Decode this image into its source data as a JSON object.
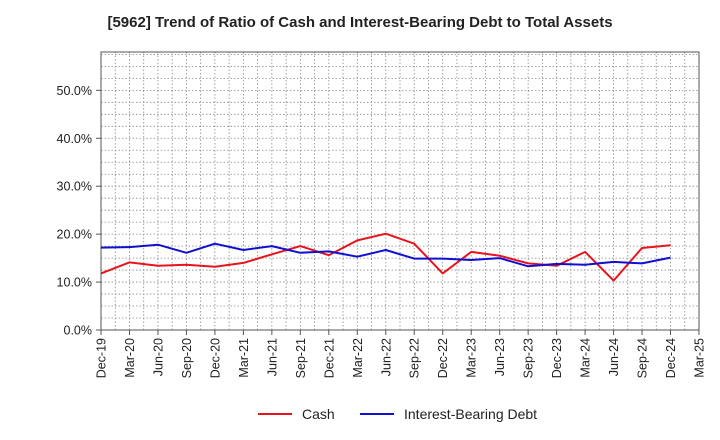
{
  "chart_data": {
    "type": "line",
    "title": "[5962]  Trend of Ratio of Cash and Interest-Bearing Debt to Total Assets",
    "xlabel": "",
    "ylabel": "",
    "x": [
      "Dec-19",
      "Mar-20",
      "Jun-20",
      "Sep-20",
      "Dec-20",
      "Mar-21",
      "Jun-21",
      "Sep-21",
      "Dec-21",
      "Mar-22",
      "Jun-22",
      "Sep-22",
      "Dec-22",
      "Mar-23",
      "Jun-23",
      "Sep-23",
      "Dec-23",
      "Mar-24",
      "Jun-24",
      "Sep-24",
      "Dec-24",
      "Mar-25"
    ],
    "ylim": [
      0,
      58
    ],
    "yticks": [
      0,
      10,
      20,
      30,
      40,
      50
    ],
    "ytick_labels": [
      "0.0%",
      "10.0%",
      "20.0%",
      "30.0%",
      "40.0%",
      "50.0%"
    ],
    "grid": true,
    "legend_position": "bottom",
    "series": [
      {
        "name": "Cash",
        "color": "#e8141c",
        "values": [
          11.8,
          14.1,
          13.4,
          13.6,
          13.2,
          14.0,
          15.8,
          17.5,
          15.6,
          18.7,
          20.1,
          18.0,
          11.8,
          16.3,
          15.5,
          13.9,
          13.4,
          16.3,
          10.3,
          17.1,
          17.7,
          null
        ]
      },
      {
        "name": "Interest-Bearing Debt",
        "color": "#1010d0",
        "values": [
          17.2,
          17.3,
          17.8,
          16.1,
          18.0,
          16.7,
          17.5,
          16.1,
          16.4,
          15.3,
          16.7,
          14.9,
          14.9,
          14.6,
          15.0,
          13.3,
          13.8,
          13.6,
          14.2,
          13.9,
          15.1,
          null
        ]
      }
    ]
  }
}
